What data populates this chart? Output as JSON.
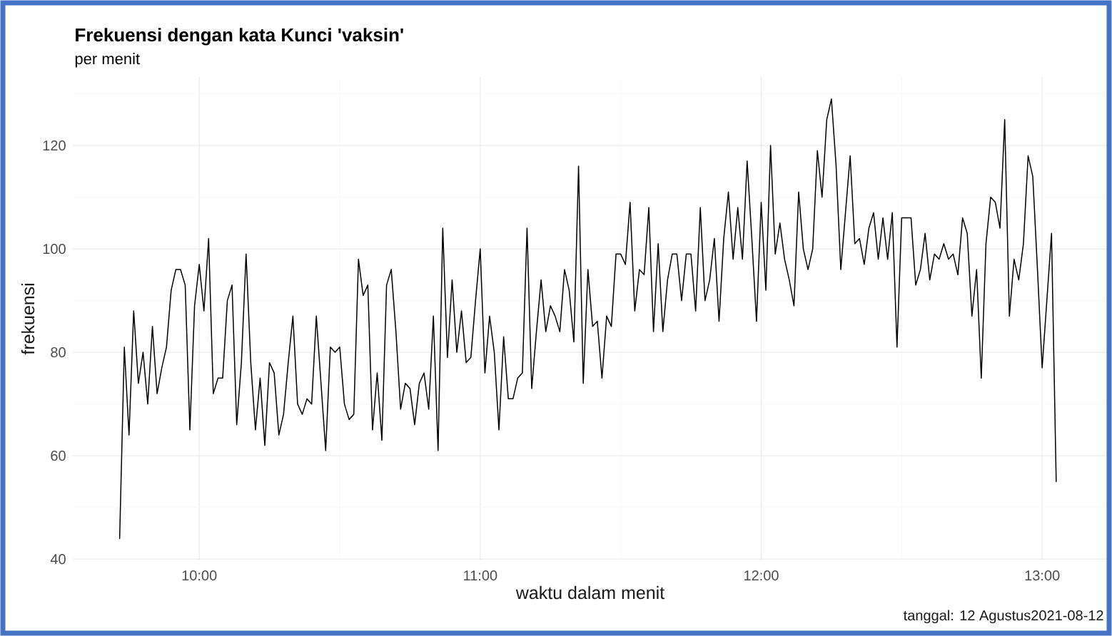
{
  "chart_data": {
    "type": "line",
    "title": "Frekuensi dengan kata Kunci 'vaksin'",
    "subtitle": "per menit",
    "xlabel": "waktu dalam menit",
    "ylabel": "frekuensi",
    "annotations": [
      "tanggal: 12 Agustus2021-08-12"
    ],
    "color": "#000000",
    "grid": true,
    "xlim": [
      "2021-08-12T09:33",
      "2021-08-12T13:14"
    ],
    "xticks": [
      {
        "value": "2021-08-12T10:00",
        "label": "10:00"
      },
      {
        "value": "2021-08-12T10:30",
        "label": null
      },
      {
        "value": "2021-08-12T11:00",
        "label": "11:00"
      },
      {
        "value": "2021-08-12T11:30",
        "label": null
      },
      {
        "value": "2021-08-12T12:00",
        "label": "12:00"
      },
      {
        "value": "2021-08-12T12:30",
        "label": null
      },
      {
        "value": "2021-08-12T13:00",
        "label": "13:00"
      }
    ],
    "ylim": [
      39.75,
      133.25
    ],
    "yticks": [
      40,
      {
        "value": 50,
        "label": null
      },
      60,
      {
        "value": 70,
        "label": null
      },
      80,
      {
        "value": 90,
        "label": null
      },
      100,
      {
        "value": 110,
        "label": null
      },
      120,
      {
        "value": 130,
        "label": null
      }
    ],
    "x": [
      "2021-08-12T09:43",
      "2021-08-12T09:44",
      "2021-08-12T09:45",
      "2021-08-12T09:46",
      "2021-08-12T09:47",
      "2021-08-12T09:48",
      "2021-08-12T09:49",
      "2021-08-12T09:50",
      "2021-08-12T09:51",
      "2021-08-12T09:52",
      "2021-08-12T09:53",
      "2021-08-12T09:54",
      "2021-08-12T09:55",
      "2021-08-12T09:56",
      "2021-08-12T09:57",
      "2021-08-12T09:58",
      "2021-08-12T09:59",
      "2021-08-12T10:00",
      "2021-08-12T10:01",
      "2021-08-12T10:02",
      "2021-08-12T10:03",
      "2021-08-12T10:04",
      "2021-08-12T10:05",
      "2021-08-12T10:06",
      "2021-08-12T10:07",
      "2021-08-12T10:08",
      "2021-08-12T10:09",
      "2021-08-12T10:10",
      "2021-08-12T10:11",
      "2021-08-12T10:12",
      "2021-08-12T10:13",
      "2021-08-12T10:14",
      "2021-08-12T10:15",
      "2021-08-12T10:16",
      "2021-08-12T10:17",
      "2021-08-12T10:18",
      "2021-08-12T10:19",
      "2021-08-12T10:20",
      "2021-08-12T10:21",
      "2021-08-12T10:22",
      "2021-08-12T10:23",
      "2021-08-12T10:24",
      "2021-08-12T10:25",
      "2021-08-12T10:26",
      "2021-08-12T10:27",
      "2021-08-12T10:28",
      "2021-08-12T10:29",
      "2021-08-12T10:30",
      "2021-08-12T10:31",
      "2021-08-12T10:32",
      "2021-08-12T10:33",
      "2021-08-12T10:34",
      "2021-08-12T10:35",
      "2021-08-12T10:36",
      "2021-08-12T10:37",
      "2021-08-12T10:38",
      "2021-08-12T10:39",
      "2021-08-12T10:40",
      "2021-08-12T10:41",
      "2021-08-12T10:42",
      "2021-08-12T10:43",
      "2021-08-12T10:44",
      "2021-08-12T10:45",
      "2021-08-12T10:46",
      "2021-08-12T10:47",
      "2021-08-12T10:48",
      "2021-08-12T10:49",
      "2021-08-12T10:50",
      "2021-08-12T10:51",
      "2021-08-12T10:52",
      "2021-08-12T10:53",
      "2021-08-12T10:54",
      "2021-08-12T10:55",
      "2021-08-12T10:56",
      "2021-08-12T10:57",
      "2021-08-12T10:58",
      "2021-08-12T10:59",
      "2021-08-12T11:00",
      "2021-08-12T11:01",
      "2021-08-12T11:02",
      "2021-08-12T11:03",
      "2021-08-12T11:04",
      "2021-08-12T11:05",
      "2021-08-12T11:06",
      "2021-08-12T11:07",
      "2021-08-12T11:08",
      "2021-08-12T11:09",
      "2021-08-12T11:10",
      "2021-08-12T11:11",
      "2021-08-12T11:12",
      "2021-08-12T11:13",
      "2021-08-12T11:14",
      "2021-08-12T11:15",
      "2021-08-12T11:16",
      "2021-08-12T11:17",
      "2021-08-12T11:18",
      "2021-08-12T11:19",
      "2021-08-12T11:20",
      "2021-08-12T11:21",
      "2021-08-12T11:22",
      "2021-08-12T11:23",
      "2021-08-12T11:24",
      "2021-08-12T11:25",
      "2021-08-12T11:26",
      "2021-08-12T11:27",
      "2021-08-12T11:28",
      "2021-08-12T11:29",
      "2021-08-12T11:30",
      "2021-08-12T11:31",
      "2021-08-12T11:32",
      "2021-08-12T11:33",
      "2021-08-12T11:34",
      "2021-08-12T11:35",
      "2021-08-12T11:36",
      "2021-08-12T11:37",
      "2021-08-12T11:38",
      "2021-08-12T11:39",
      "2021-08-12T11:40",
      "2021-08-12T11:41",
      "2021-08-12T11:42",
      "2021-08-12T11:43",
      "2021-08-12T11:44",
      "2021-08-12T11:45",
      "2021-08-12T11:46",
      "2021-08-12T11:47",
      "2021-08-12T11:48",
      "2021-08-12T11:49",
      "2021-08-12T11:50",
      "2021-08-12T11:51",
      "2021-08-12T11:52",
      "2021-08-12T11:53",
      "2021-08-12T11:54",
      "2021-08-12T11:55",
      "2021-08-12T11:56",
      "2021-08-12T11:57",
      "2021-08-12T11:58",
      "2021-08-12T11:59",
      "2021-08-12T12:00",
      "2021-08-12T12:01",
      "2021-08-12T12:02",
      "2021-08-12T12:03",
      "2021-08-12T12:04",
      "2021-08-12T12:05",
      "2021-08-12T12:06",
      "2021-08-12T12:07",
      "2021-08-12T12:08",
      "2021-08-12T12:09",
      "2021-08-12T12:10",
      "2021-08-12T12:11",
      "2021-08-12T12:12",
      "2021-08-12T12:13",
      "2021-08-12T12:14",
      "2021-08-12T12:15",
      "2021-08-12T12:16",
      "2021-08-12T12:17",
      "2021-08-12T12:18",
      "2021-08-12T12:19",
      "2021-08-12T12:20",
      "2021-08-12T12:21",
      "2021-08-12T12:22",
      "2021-08-12T12:23",
      "2021-08-12T12:24",
      "2021-08-12T12:25",
      "2021-08-12T12:26",
      "2021-08-12T12:27",
      "2021-08-12T12:28",
      "2021-08-12T12:29",
      "2021-08-12T12:30",
      "2021-08-12T12:31",
      "2021-08-12T12:32",
      "2021-08-12T12:33",
      "2021-08-12T12:34",
      "2021-08-12T12:35",
      "2021-08-12T12:36",
      "2021-08-12T12:37",
      "2021-08-12T12:38",
      "2021-08-12T12:39",
      "2021-08-12T12:40",
      "2021-08-12T12:41",
      "2021-08-12T12:42",
      "2021-08-12T12:43",
      "2021-08-12T12:44",
      "2021-08-12T12:45",
      "2021-08-12T12:46",
      "2021-08-12T12:47",
      "2021-08-12T12:48",
      "2021-08-12T12:49",
      "2021-08-12T12:50",
      "2021-08-12T12:51",
      "2021-08-12T12:52",
      "2021-08-12T12:53",
      "2021-08-12T12:54",
      "2021-08-12T12:55",
      "2021-08-12T12:56",
      "2021-08-12T12:57",
      "2021-08-12T12:58",
      "2021-08-12T12:59",
      "2021-08-12T13:00",
      "2021-08-12T13:01",
      "2021-08-12T13:02",
      "2021-08-12T13:03"
    ],
    "values": [
      44,
      81,
      64,
      88,
      74,
      80,
      70,
      85,
      72,
      77,
      81,
      92,
      96,
      96,
      93,
      65,
      89,
      97,
      88,
      102,
      72,
      75,
      75,
      90,
      93,
      66,
      78,
      99,
      78,
      65,
      75,
      62,
      78,
      76,
      64,
      68,
      78,
      87,
      70,
      68,
      71,
      70,
      87,
      74,
      61,
      81,
      80,
      81,
      70,
      67,
      68,
      98,
      91,
      93,
      65,
      76,
      63,
      93,
      96,
      84,
      69,
      74,
      73,
      66,
      74,
      76,
      69,
      87,
      61,
      104,
      79,
      94,
      80,
      88,
      78,
      79,
      90,
      100,
      76,
      87,
      80,
      65,
      83,
      71,
      71,
      75,
      76,
      104,
      73,
      84,
      94,
      84,
      89,
      87,
      84,
      96,
      92,
      82,
      116,
      74,
      96,
      85,
      86,
      75,
      87,
      85,
      99,
      99,
      97,
      109,
      88,
      96,
      95,
      108,
      84,
      101,
      84,
      94,
      99,
      99,
      90,
      99,
      99,
      88,
      108,
      90,
      94,
      102,
      86,
      102,
      111,
      98,
      108,
      98,
      117,
      102,
      86,
      109,
      92,
      120,
      99,
      105,
      98,
      94,
      89,
      111,
      100,
      96,
      100,
      119,
      110,
      125,
      129,
      116,
      96,
      107,
      118,
      101,
      102,
      97,
      104,
      107,
      98,
      106,
      98,
      107,
      81,
      106,
      106,
      106,
      93,
      96,
      103,
      94,
      99,
      98,
      101,
      98,
      99,
      95,
      106,
      103,
      87,
      96,
      75,
      101,
      110,
      109,
      104,
      125,
      87,
      98,
      94,
      101,
      118,
      114,
      96,
      77,
      90,
      103,
      55
    ]
  }
}
